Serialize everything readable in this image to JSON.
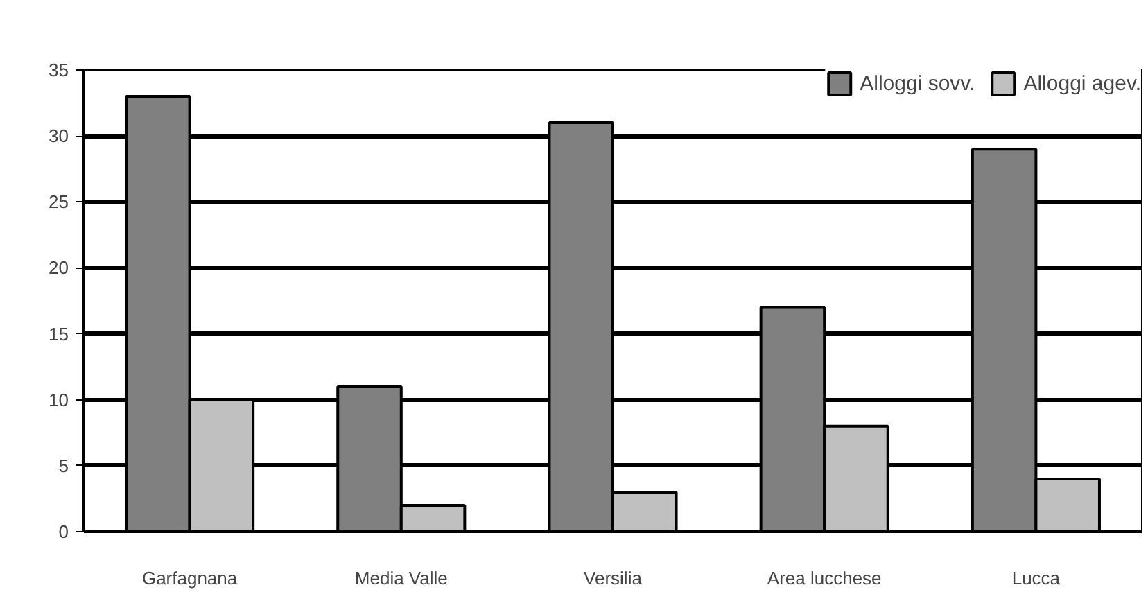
{
  "chart_data": {
    "type": "bar",
    "categories": [
      "Garfagnana",
      "Media Valle",
      "Versilia",
      "Area lucchese",
      "Lucca"
    ],
    "series": [
      {
        "name": "Alloggi sovv.",
        "color": "#808080",
        "values": [
          33,
          11,
          31,
          17,
          29
        ]
      },
      {
        "name": "Alloggi agev.",
        "color": "#c0c0c0",
        "values": [
          10,
          2,
          3,
          8,
          4
        ]
      }
    ],
    "ylim": [
      0,
      35
    ],
    "yticks": [
      0,
      5,
      10,
      15,
      20,
      25,
      30,
      35
    ],
    "grid": "y",
    "legend": "top right"
  }
}
